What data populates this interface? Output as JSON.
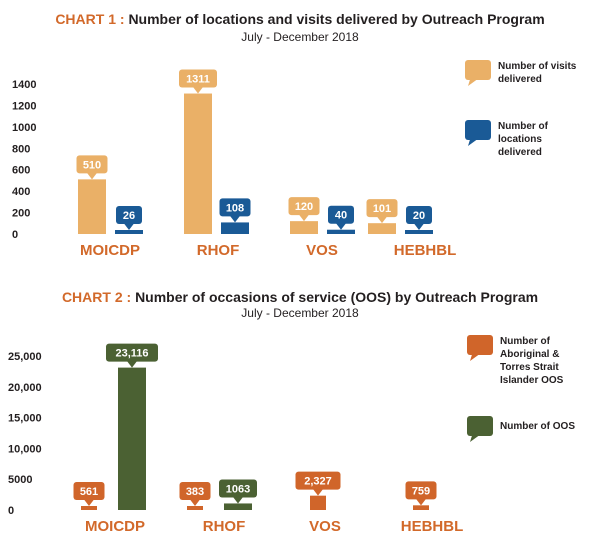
{
  "chart_data": [
    {
      "type": "bar",
      "title_prefix": "CHART 1 :",
      "title": "Number of locations and visits delivered by Outreach Program",
      "subtitle": "July - December 2018",
      "categories": [
        "MOICDP",
        "RHOF",
        "VOS",
        "HEBHBL"
      ],
      "series": [
        {
          "name": "Number of visits delivered",
          "values": [
            510,
            1311,
            120,
            101
          ],
          "color": "#eab067"
        },
        {
          "name": "Number of locations delivered",
          "values": [
            26,
            108,
            40,
            20
          ],
          "color": "#1a5a96"
        }
      ],
      "yticks": [
        "1400",
        "1200",
        "1000",
        "800",
        "600",
        "400",
        "200",
        "0"
      ],
      "ylim": [
        0,
        1400
      ],
      "grid": false,
      "legend": "right"
    },
    {
      "type": "bar",
      "title_prefix": "CHART 2 :",
      "title": "Number of occasions of service (OOS) by Outreach Program",
      "subtitle": "July - December 2018",
      "categories": [
        "MOICDP",
        "RHOF",
        "VOS",
        "HEBHBL"
      ],
      "series": [
        {
          "name": "Number of Aboriginal & Torres Strait Islander OOS",
          "values": [
            561,
            383,
            2327,
            759
          ],
          "labels": [
            "561",
            "383",
            "2,327",
            "759"
          ],
          "color": "#d0652a"
        },
        {
          "name": "Number of OOS",
          "values": [
            23116,
            1063,
            null,
            null
          ],
          "labels": [
            "23,116",
            "1063",
            "",
            ""
          ],
          "color": "#4b6133"
        }
      ],
      "yticks": [
        "25,000",
        "20,000",
        "15,000",
        "10,000",
        "5000",
        "0"
      ],
      "ylim": [
        0,
        25000
      ],
      "grid": false,
      "legend": "right"
    }
  ]
}
